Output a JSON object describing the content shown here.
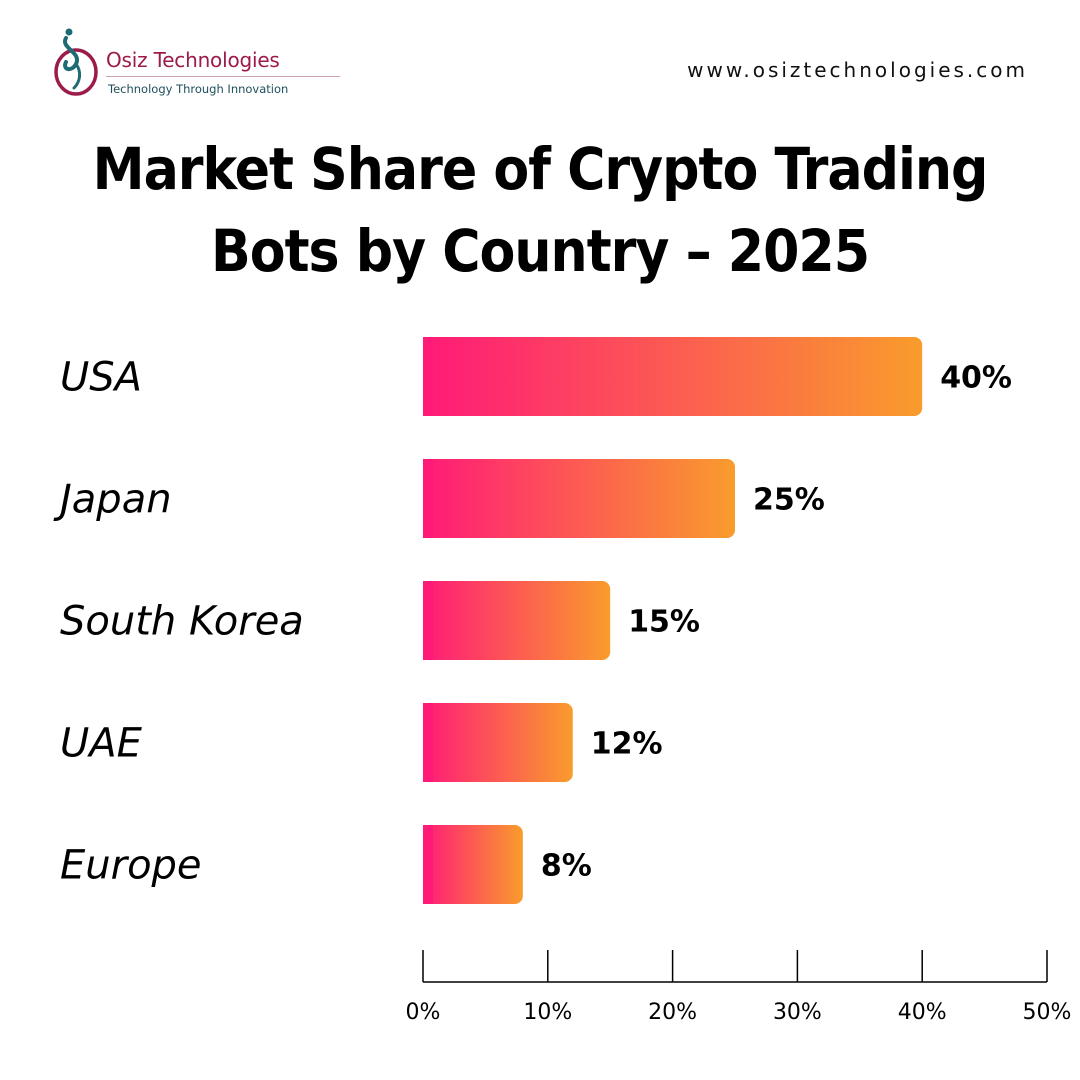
{
  "brand": {
    "name": "Osiz Technologies",
    "tagline": "Technology Through Innovation",
    "logo_icon": "osiz-logo-icon",
    "colors": {
      "primary": "#9b1b4a",
      "secondary": "#1e6b74"
    }
  },
  "website": "www.osiztechnologies.com",
  "title_lines": [
    "Market Share of Crypto Trading",
    "Bots by Country – 2025"
  ],
  "chart_data": {
    "type": "bar",
    "orientation": "horizontal",
    "title": "Market Share of Crypto Trading Bots by Country – 2025",
    "categories": [
      "USA",
      "Japan",
      "South Korea",
      "UAE",
      "Europe"
    ],
    "values": [
      40,
      25,
      15,
      12,
      8
    ],
    "value_labels": [
      "40%",
      "25%",
      "15%",
      "12%",
      "8%"
    ],
    "xlim": [
      0,
      50
    ],
    "xticks": [
      0,
      10,
      20,
      30,
      40,
      50
    ],
    "xtick_labels": [
      "0%",
      "10%",
      "20%",
      "30%",
      "40%",
      "50%"
    ],
    "xlabel": "",
    "ylabel": "",
    "grid": false,
    "legend": "none",
    "bar_gradient": [
      "#ff1a78",
      "#f99c2c"
    ]
  }
}
